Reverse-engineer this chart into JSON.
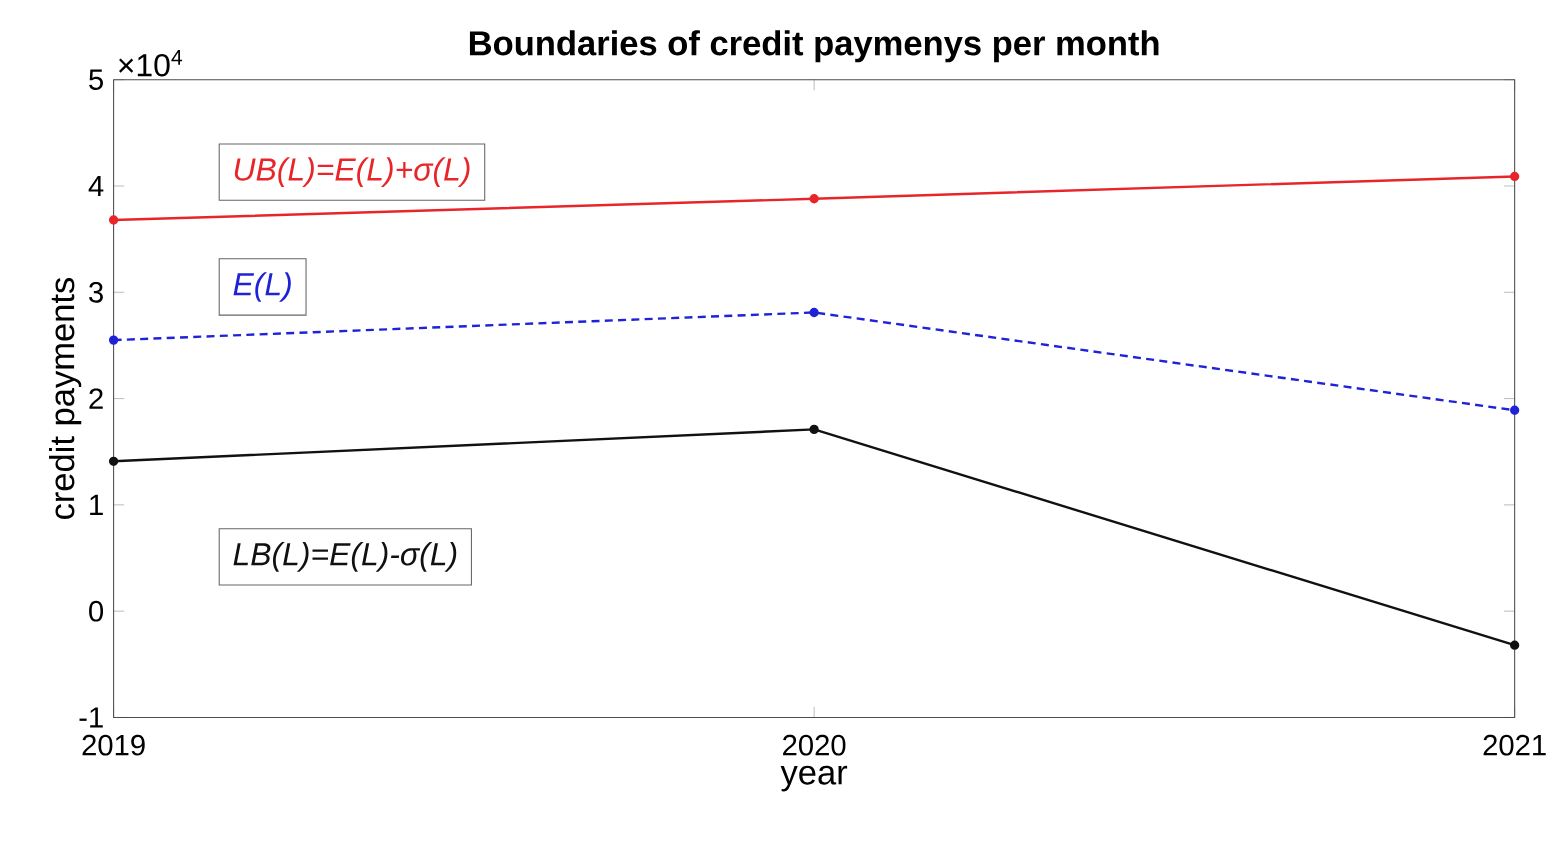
{
  "chart_data": {
    "type": "line",
    "title": "Boundaries of credit paymenys per month",
    "xlabel": "year",
    "ylabel": "credit payments",
    "annotations": [
      "×10$^{4}$"
    ],
    "x": [
      2019,
      2020,
      2021
    ],
    "xlim": [
      2019,
      2021
    ],
    "xticks": [
      2019,
      2020,
      2021
    ],
    "ylim": [
      -1,
      5
    ],
    "yticks": [
      -1,
      0,
      1,
      2,
      3,
      4,
      5
    ],
    "marker": "circle",
    "series": [
      {
        "name": "UB(L)=E(L)+σ(L)",
        "color": "#e8262a",
        "line_style": "solid",
        "values": [
          3.68,
          3.88,
          4.09
        ]
      },
      {
        "name": "E(L)",
        "color": "#1f22d6",
        "line_style": "dashed",
        "values": [
          2.55,
          2.81,
          1.89
        ]
      },
      {
        "name": "LB(L)=E(L)-σ(L)",
        "color": "#111111",
        "line_style": "solid",
        "values": [
          1.41,
          1.71,
          -0.32
        ]
      }
    ]
  }
}
